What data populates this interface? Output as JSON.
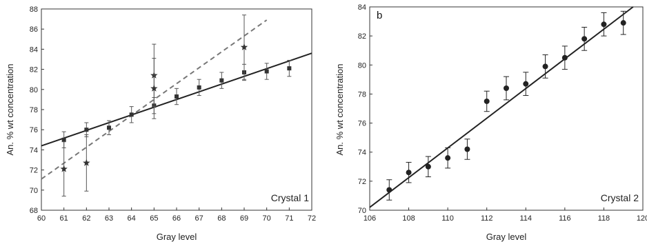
{
  "chart_data": [
    {
      "type": "scatter",
      "title": "",
      "panel_label": "",
      "annotation": "Crystal 1",
      "xlabel": "Gray level",
      "ylabel": "An. % wt concentration",
      "xlim": [
        60,
        72
      ],
      "ylim": [
        68,
        88
      ],
      "xticks": [
        60,
        61,
        62,
        63,
        64,
        65,
        66,
        67,
        68,
        69,
        70,
        71,
        72
      ],
      "yticks": [
        68,
        70,
        72,
        74,
        76,
        78,
        80,
        82,
        84,
        86,
        88
      ],
      "grid": false,
      "series": [
        {
          "marker": "square",
          "color": "#333333",
          "x": [
            61,
            62,
            63,
            64,
            65,
            66,
            67,
            68,
            69,
            70,
            71
          ],
          "y": [
            75.0,
            76.0,
            76.2,
            77.5,
            78.4,
            79.3,
            80.2,
            80.9,
            81.7,
            81.8,
            82.1
          ],
          "err": [
            0.8,
            0.7,
            0.7,
            0.8,
            0.8,
            0.8,
            0.8,
            0.8,
            0.8,
            0.8,
            0.8
          ]
        },
        {
          "marker": "star",
          "color": "#333333",
          "x": [
            61,
            62,
            65,
            65,
            69
          ],
          "y": [
            72.1,
            72.7,
            81.4,
            80.1,
            84.2
          ],
          "err": [
            2.7,
            2.8,
            3.1,
            3.0,
            3.2
          ]
        }
      ],
      "fits": [
        {
          "style": "solid",
          "color": "#222222",
          "x": [
            60,
            72
          ],
          "y": [
            74.4,
            83.6
          ]
        },
        {
          "style": "dashed",
          "color": "#777777",
          "x": [
            60,
            70
          ],
          "y": [
            71.1,
            86.9
          ]
        }
      ]
    },
    {
      "type": "scatter",
      "title": "",
      "panel_label": "b",
      "annotation": "Crystal 2",
      "xlabel": "Gray level",
      "ylabel": "An. % wt concentration",
      "xlim": [
        106,
        120
      ],
      "ylim": [
        70,
        84
      ],
      "xticks": [
        106,
        108,
        110,
        112,
        114,
        116,
        118,
        120
      ],
      "yticks": [
        70,
        72,
        74,
        76,
        78,
        80,
        82,
        84
      ],
      "grid": false,
      "series": [
        {
          "marker": "circle",
          "color": "#222222",
          "x": [
            107,
            108,
            109,
            110,
            111,
            112,
            113,
            114,
            115,
            116,
            117,
            118,
            119
          ],
          "y": [
            71.4,
            72.6,
            73.0,
            73.6,
            74.2,
            77.5,
            78.4,
            78.7,
            79.9,
            80.5,
            81.8,
            82.8,
            82.9
          ],
          "err": [
            0.7,
            0.7,
            0.7,
            0.7,
            0.7,
            0.7,
            0.8,
            0.8,
            0.8,
            0.8,
            0.8,
            0.8,
            0.8
          ]
        }
      ],
      "fits": [
        {
          "style": "solid",
          "color": "#222222",
          "x": [
            106,
            119.5
          ],
          "y": [
            70.2,
            84.0
          ]
        }
      ]
    }
  ]
}
